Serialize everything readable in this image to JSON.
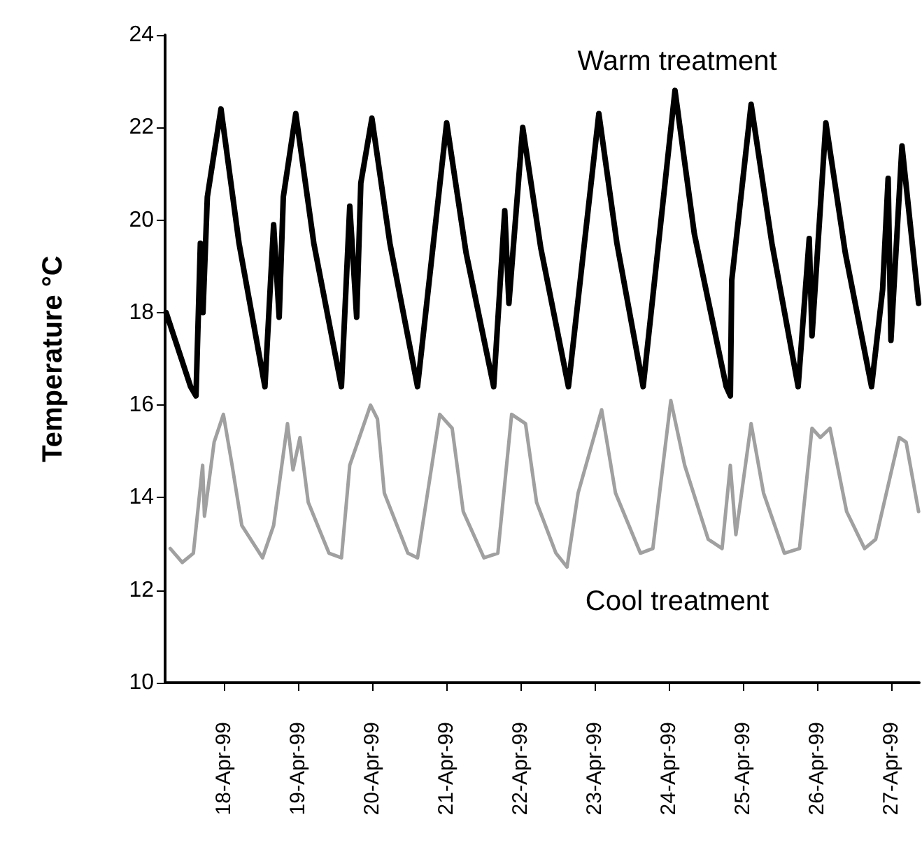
{
  "chart_data": {
    "type": "line",
    "ylabel": "Temperature °C",
    "xlim": [
      "1999-04-17T05:00",
      "1999-04-27T09:00"
    ],
    "xticks": [
      {
        "value": "1999-04-18",
        "label": "18-Apr-99"
      },
      {
        "value": "1999-04-19",
        "label": "19-Apr-99"
      },
      {
        "value": "1999-04-20",
        "label": "20-Apr-99"
      },
      {
        "value": "1999-04-21",
        "label": "21-Apr-99"
      },
      {
        "value": "1999-04-22",
        "label": "22-Apr-99"
      },
      {
        "value": "1999-04-23",
        "label": "23-Apr-99"
      },
      {
        "value": "1999-04-24",
        "label": "24-Apr-99"
      },
      {
        "value": "1999-04-25",
        "label": "25-Apr-99"
      },
      {
        "value": "1999-04-26",
        "label": "26-Apr-99"
      },
      {
        "value": "1999-04-27",
        "label": "27-Apr-99"
      }
    ],
    "ylim": [
      10,
      24
    ],
    "yticks": [
      10,
      12,
      14,
      16,
      18,
      20,
      22,
      24
    ],
    "grid": false,
    "marker": "none",
    "line_style": "solid",
    "series": [
      {
        "name": "Warm treatment",
        "color": "#000000",
        "x": [
          "1999-04-17T05:20",
          "1999-04-17T13:15",
          "1999-04-17T15:00",
          "1999-04-17T16:25",
          "1999-04-17T17:15",
          "1999-04-17T18:40",
          "1999-04-17T23:05",
          "1999-04-18T04:55",
          "1999-04-18T13:18",
          "1999-04-18T16:07",
          "1999-04-18T17:55",
          "1999-04-18T19:15",
          "1999-04-18T23:17",
          "1999-04-19T05:07",
          "1999-04-19T14:03",
          "1999-04-19T16:45",
          "1999-04-19T18:59",
          "1999-04-19T20:20",
          "1999-04-19T23:55",
          "1999-04-20T05:44",
          "1999-04-20T14:41",
          "1999-04-21T00:06",
          "1999-04-21T06:22",
          "1999-04-21T15:19",
          "1999-04-21T18:54",
          "1999-04-21T20:15",
          "1999-04-22T00:43",
          "1999-04-22T06:33",
          "1999-04-22T15:30",
          "1999-04-23T01:21",
          "1999-04-23T07:11",
          "1999-04-23T15:41",
          "1999-04-24T01:59",
          "1999-04-24T08:15",
          "1999-04-24T18:33",
          "1999-04-24T19:54",
          "1999-04-24T20:21",
          "1999-04-25T02:37",
          "1999-04-25T09:20",
          "1999-04-25T17:50",
          "1999-04-25T21:25",
          "1999-04-25T22:19",
          "1999-04-26T02:48",
          "1999-04-26T09:04",
          "1999-04-26T17:35",
          "1999-04-26T21:10",
          "1999-04-26T22:57",
          "1999-04-26T23:51",
          "1999-04-27T03:26",
          "1999-04-27T08:48"
        ],
        "values": [
          18.0,
          16.4,
          16.2,
          19.5,
          18.0,
          20.5,
          22.4,
          19.5,
          16.4,
          19.9,
          17.9,
          20.5,
          22.3,
          19.5,
          16.4,
          20.3,
          17.9,
          20.8,
          22.2,
          19.5,
          16.4,
          22.1,
          19.3,
          16.4,
          20.2,
          18.2,
          22.0,
          19.4,
          16.4,
          22.3,
          19.5,
          16.4,
          22.8,
          19.7,
          16.4,
          16.2,
          18.7,
          22.5,
          19.5,
          16.4,
          19.6,
          17.5,
          22.1,
          19.3,
          16.4,
          18.5,
          20.9,
          17.4,
          21.6,
          18.2
        ]
      },
      {
        "name": "Cool treatment",
        "color": "#a0a0a0",
        "x": [
          "1999-04-17T06:40",
          "1999-04-17T10:34",
          "1999-04-17T14:09",
          "1999-04-17T17:09",
          "1999-04-17T17:44",
          "1999-04-17T20:52",
          "1999-04-17T23:52",
          "1999-04-18T02:41",
          "1999-04-18T05:49",
          "1999-04-18T12:32",
          "1999-04-18T16:07",
          "1999-04-18T20:36",
          "1999-04-18T22:23",
          "1999-04-19T00:38",
          "1999-04-19T03:19",
          "1999-04-19T10:02",
          "1999-04-19T14:04",
          "1999-04-19T16:45",
          "1999-04-19T23:28",
          "1999-04-20T01:43",
          "1999-04-20T03:56",
          "1999-04-20T11:34",
          "1999-04-20T14:41",
          "1999-04-20T21:52",
          "1999-04-21T01:53",
          "1999-04-21T05:28",
          "1999-04-21T12:11",
          "1999-04-21T16:40",
          "1999-04-21T21:08",
          "1999-04-22T01:37",
          "1999-04-22T05:12",
          "1999-04-22T11:28",
          "1999-04-22T15:03",
          "1999-04-22T18:38",
          "1999-04-23T02:15",
          "1999-04-23T06:44",
          "1999-04-23T14:47",
          "1999-04-23T18:49",
          "1999-04-24T00:38",
          "1999-04-24T05:07",
          "1999-04-24T12:44",
          "1999-04-24T17:13",
          "1999-04-24T19:53",
          "1999-04-24T21:41",
          "1999-04-25T02:37",
          "1999-04-25T06:38",
          "1999-04-25T13:22",
          "1999-04-25T18:17",
          "1999-04-25T22:19",
          "1999-04-26T01:00",
          "1999-04-26T04:08",
          "1999-04-26T09:31",
          "1999-04-26T15:20",
          "1999-04-26T18:55",
          "1999-04-27T02:32",
          "1999-04-27T04:46",
          "1999-04-27T08:48"
        ],
        "values": [
          12.9,
          12.6,
          12.8,
          14.7,
          13.6,
          15.2,
          15.8,
          14.7,
          13.4,
          12.7,
          13.4,
          15.6,
          14.6,
          15.3,
          13.9,
          12.8,
          12.7,
          14.7,
          16.0,
          15.7,
          14.1,
          12.8,
          12.7,
          15.8,
          15.5,
          13.7,
          12.7,
          12.8,
          15.8,
          15.6,
          13.9,
          12.8,
          12.5,
          14.1,
          15.9,
          14.1,
          12.8,
          12.9,
          16.1,
          14.7,
          13.1,
          12.9,
          14.7,
          13.2,
          15.6,
          14.1,
          12.8,
          12.9,
          15.5,
          15.3,
          15.5,
          13.7,
          12.9,
          13.1,
          15.3,
          15.2,
          13.7
        ]
      }
    ]
  }
}
